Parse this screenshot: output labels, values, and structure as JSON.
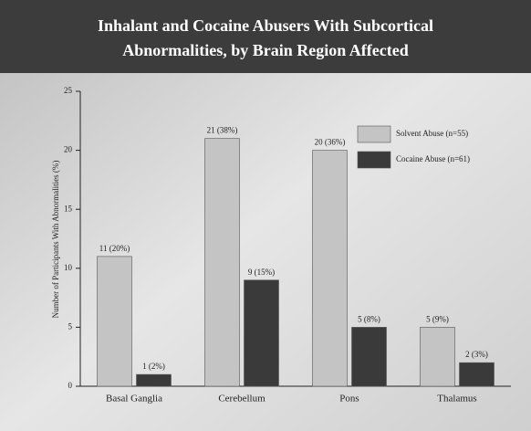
{
  "chart_data": {
    "type": "bar",
    "title": [
      "Inhalant and Cocaine Abusers With Subcortical",
      "Abnormalities, by Brain Region Affected"
    ],
    "y_label": "Number of Participants With Abnormalities (%)",
    "categories": [
      "Basal Ganglia",
      "Cerebellum",
      "Pons",
      "Thalamus"
    ],
    "series": [
      {
        "name": "Solvent Abuse (n=55)",
        "color": "#c4c4c4",
        "values": [
          11,
          21,
          20,
          5
        ],
        "value_labels": [
          "11 (20%)",
          "21 (38%)",
          "20 (36%)",
          "5 (9%)"
        ]
      },
      {
        "name": "Cocaine Abuse (n=61)",
        "color": "#3a3a3a",
        "values": [
          1,
          9,
          5,
          2
        ],
        "value_labels": [
          "1 (2%)",
          "9 (15%)",
          "5 (8%)",
          "2 (3%)"
        ]
      }
    ],
    "ylim": [
      0,
      25
    ],
    "yticks": [
      0,
      5,
      10,
      15,
      20,
      25
    ],
    "legend": "upper right"
  }
}
